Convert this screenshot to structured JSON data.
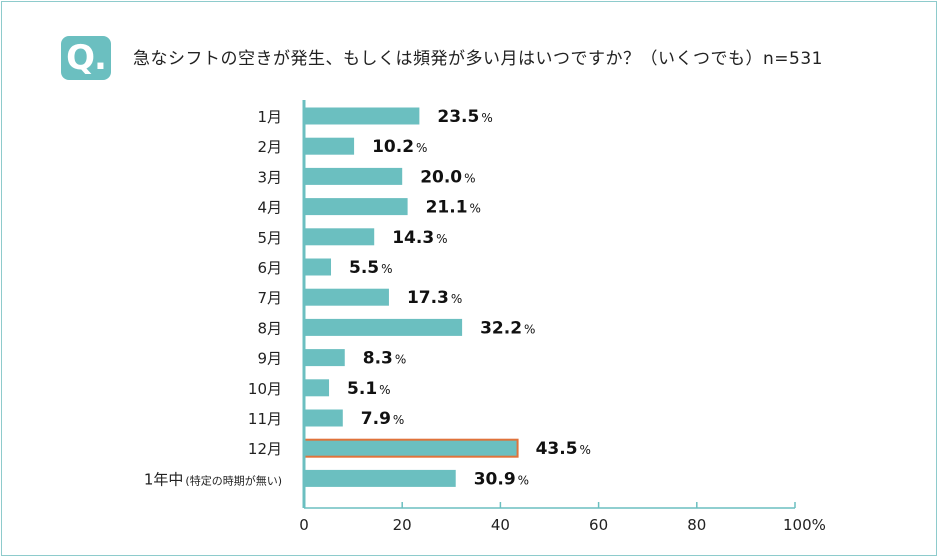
{
  "header": {
    "badge": "Q.",
    "question": "急なシフトの空きが発生、もしくは頻発が多い月はいつですか？（いくつでも）n=531"
  },
  "colors": {
    "bar": "#6bbfc0",
    "highlight_border": "#e0733b",
    "frame": "#8ecbcc",
    "axis": "#6bbfc0"
  },
  "chart_data": {
    "type": "bar",
    "orientation": "horizontal",
    "title": "",
    "xlabel": "",
    "ylabel": "",
    "xlim": [
      0,
      100
    ],
    "x_ticks": [
      "0",
      "20",
      "40",
      "60",
      "80",
      "100%"
    ],
    "grid": false,
    "legend": "none",
    "categories": [
      {
        "main": "1月",
        "sub": ""
      },
      {
        "main": "2月",
        "sub": ""
      },
      {
        "main": "3月",
        "sub": ""
      },
      {
        "main": "4月",
        "sub": ""
      },
      {
        "main": "5月",
        "sub": ""
      },
      {
        "main": "6月",
        "sub": ""
      },
      {
        "main": "7月",
        "sub": ""
      },
      {
        "main": "8月",
        "sub": ""
      },
      {
        "main": "9月",
        "sub": ""
      },
      {
        "main": "10月",
        "sub": ""
      },
      {
        "main": "11月",
        "sub": ""
      },
      {
        "main": "12月",
        "sub": ""
      },
      {
        "main": "1年中",
        "sub": "(特定の時期が無い)"
      }
    ],
    "values": [
      23.5,
      10.2,
      20.0,
      21.1,
      14.3,
      5.5,
      17.3,
      32.2,
      8.3,
      5.1,
      7.9,
      43.5,
      30.9
    ],
    "value_labels": [
      "23.5",
      "10.2",
      "20.0",
      "21.1",
      "14.3",
      "5.5",
      "17.3",
      "32.2",
      "8.3",
      "5.1",
      "7.9",
      "43.5",
      "30.9"
    ],
    "value_unit": "%",
    "highlight_index": 11
  }
}
